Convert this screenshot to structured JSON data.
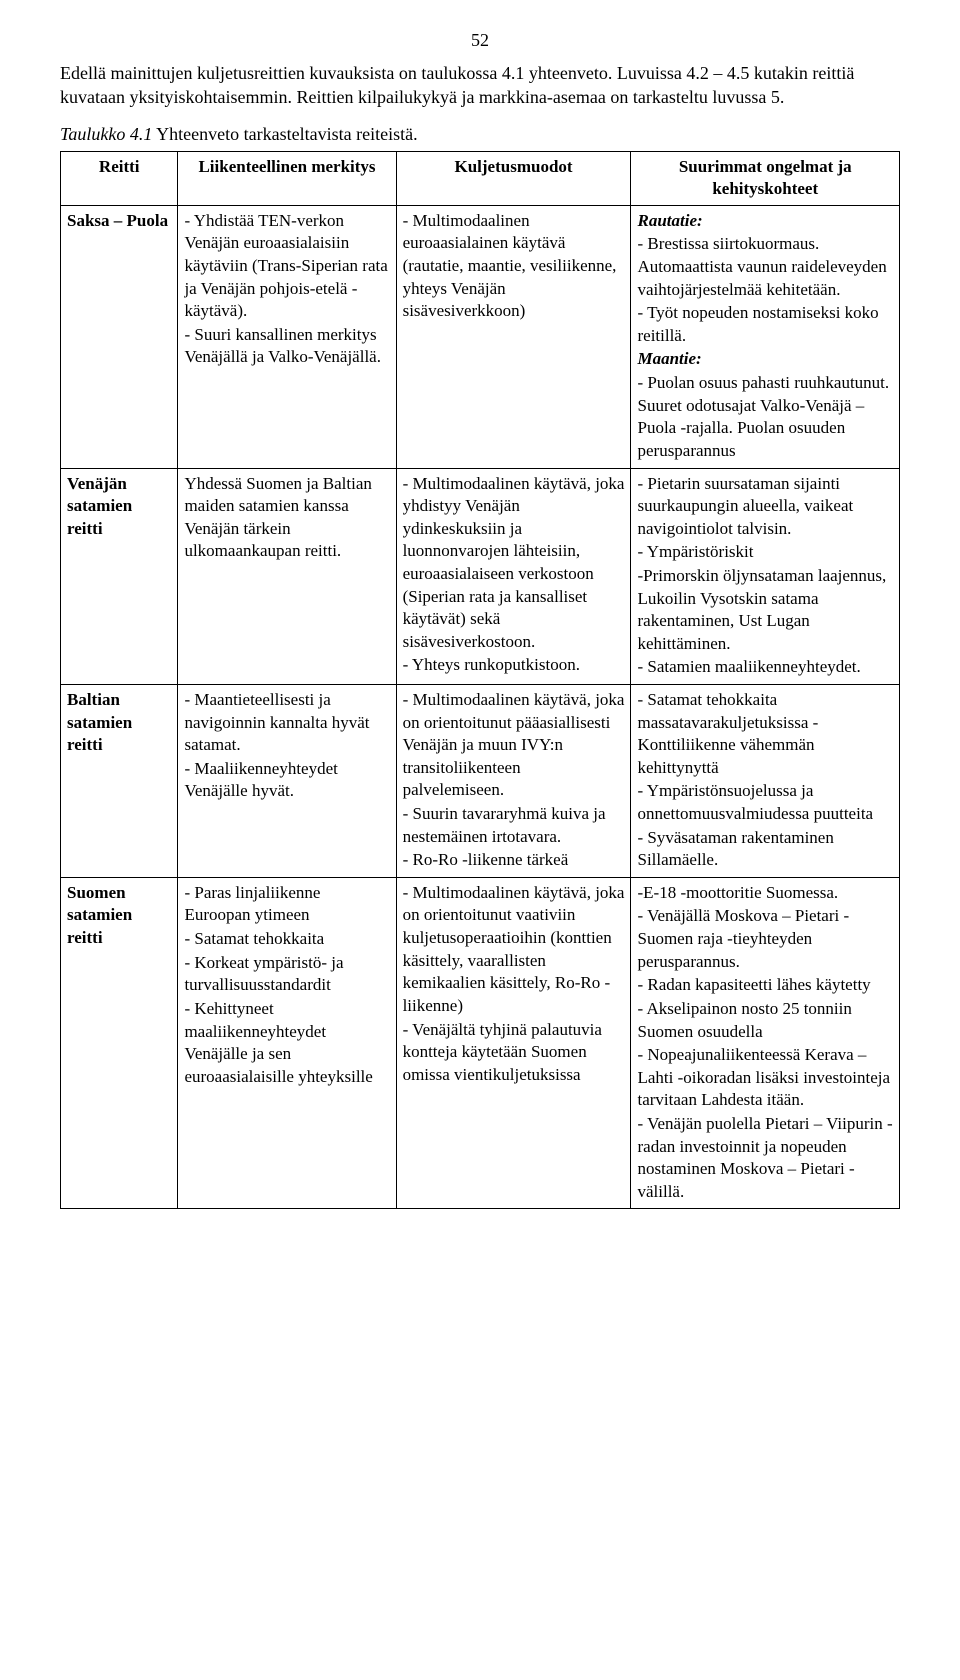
{
  "page_number": "52",
  "intro": "Edellä mainittujen kuljetusreittien kuvauksista on taulukossa 4.1 yhteenveto. Luvuissa 4.2 – 4.5 kutakin reittiä kuvataan yksityiskohtaisemmin. Reittien kilpailukykyä ja markkina-asemaa on tarkasteltu luvussa 5.",
  "caption_head": "Taulukko 4.1",
  "caption_rest": " Yhteenveto tarkasteltavista reiteistä.",
  "headers": {
    "route": "Reitti",
    "sig": "Liikenteellinen merkitys",
    "modes": "Kuljetusmuodot",
    "issues": "Suurimmat ongelmat ja kehityskohteet"
  },
  "rows": [
    {
      "route": "Saksa – Puola",
      "sig": [
        "- Yhdistää TEN-verkon Venäjän euroaasialaisiin käytäviin (Trans-Siperian rata ja Venäjän pohjois-etelä -käytävä).",
        "- Suuri kansallinen merkitys Venäjällä ja Valko-Venäjällä."
      ],
      "modes": [
        "- Multimodaalinen euroaasialainen käytävä (rautatie, maantie, vesiliikenne, yhteys Venäjän sisävesiverkkoon)"
      ],
      "issues": [
        {
          "k": "tag",
          "t": "Rautatie:"
        },
        {
          "t": "- Brestissa siirtokuormaus. Automaattista vaunun raideleveyden vaihtojärjestelmää kehitetään."
        },
        {
          "t": "- Työt nopeuden nostamiseksi koko reitillä."
        },
        {
          "k": "tag",
          "t": "Maantie:"
        },
        {
          "t": "- Puolan osuus pahasti ruuhkautunut. Suuret odotusajat Valko-Venäjä – Puola -rajalla. Puolan osuuden perusparannus"
        }
      ]
    },
    {
      "route": "Venäjän satamien reitti",
      "sig": [
        "Yhdessä Suomen ja Baltian maiden satamien kanssa Venäjän tärkein ulkomaankaupan reitti."
      ],
      "modes": [
        "- Multimodaalinen käytävä, joka yhdistyy Venäjän ydinkeskuksiin ja luonnonvarojen lähteisiin, euroaasialaiseen verkostoon (Siperian rata ja kansalliset käytävät) sekä sisävesiverkostoon.",
        "- Yhteys runkoputkistoon."
      ],
      "issues": [
        {
          "t": "- Pietarin suursataman sijainti suurkaupungin alueella, vaikeat navigointiolot talvisin."
        },
        {
          "t": "- Ympäristöriskit"
        },
        {
          "t": "-Primorskin öljynsataman laajennus, Lukoilin Vysotskin satama rakentaminen, Ust Lugan kehittäminen."
        },
        {
          "t": "- Satamien maaliikenneyhteydet."
        }
      ]
    },
    {
      "route": "Baltian satamien reitti",
      "sig": [
        "- Maantieteellisesti ja navigoinnin kannalta hyvät satamat.",
        "- Maaliikenneyhteydet Venäjälle hyvät."
      ],
      "modes": [
        "- Multimodaalinen käytävä, joka on orientoitunut pääasiallisesti Venäjän ja muun IVY:n transitoliikenteen palvelemiseen.",
        "- Suurin tavararyhmä kuiva ja nestemäinen irtotavara.",
        "- Ro-Ro -liikenne tärkeä"
      ],
      "issues": [
        {
          "t": "- Satamat tehokkaita massatavarakuljetuksissa - Konttiliikenne vähemmän kehittynyttä"
        },
        {
          "t": "- Ympäristönsuojelussa ja onnettomuusvalmiudessa puutteita"
        },
        {
          "t": "- Syväsataman rakentaminen Sillamäelle."
        }
      ]
    },
    {
      "route": "Suomen satamien reitti",
      "sig": [
        "- Paras linjaliikenne Euroopan ytimeen",
        "- Satamat tehokkaita",
        "- Korkeat ympäristö- ja turvallisuusstandardit",
        "- Kehittyneet maaliikenneyhteydet Venäjälle ja sen euroaasialaisille yhteyksille"
      ],
      "modes": [
        "- Multimodaalinen käytävä, joka on orientoitunut vaativiin kuljetusoperaatioihin (konttien käsittely, vaarallisten kemikaalien käsittely, Ro-Ro -liikenne)",
        "- Venäjältä tyhjinä palautuvia kontteja käytetään Suomen omissa vientikuljetuksissa"
      ],
      "issues": [
        {
          "t": "-E-18 -moottoritie Suomessa."
        },
        {
          "t": "- Venäjällä Moskova – Pietari - Suomen raja -tieyhteyden perusparannus."
        },
        {
          "t": "- Radan kapasiteetti lähes käytetty"
        },
        {
          "t": "- Akselipainon nosto 25 tonniin Suomen osuudella"
        },
        {
          "t": "- Nopeajunaliikenteessä Kerava – Lahti -oikoradan lisäksi investointeja tarvitaan Lahdesta itään."
        },
        {
          "t": "- Venäjän puolella Pietari – Viipurin -radan investoinnit ja nopeuden nostaminen Moskova – Pietari -välillä."
        }
      ]
    }
  ]
}
